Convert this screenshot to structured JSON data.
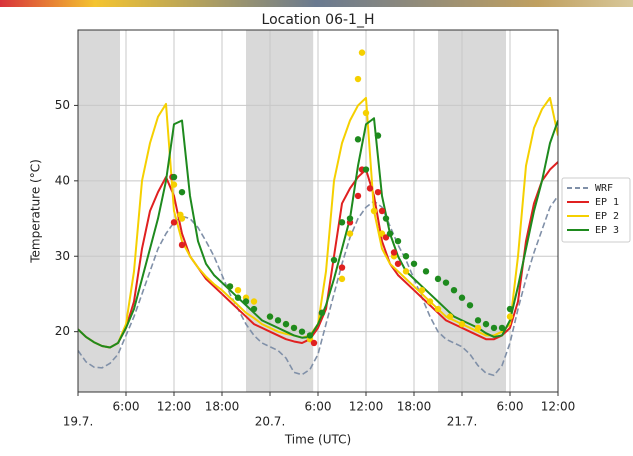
{
  "chart_data": {
    "type": "line",
    "title": "Location 06-1_H",
    "xlabel": "Time (UTC)",
    "ylabel": "Temperature (°C)",
    "xlim": [
      0,
      60
    ],
    "ylim": [
      12,
      60
    ],
    "yticks": [
      20,
      30,
      40,
      50
    ],
    "xticks": [
      {
        "value": 0,
        "label": "19.7."
      },
      {
        "value": 6,
        "label": "6:00"
      },
      {
        "value": 12,
        "label": "12:00"
      },
      {
        "value": 18,
        "label": "18:00"
      },
      {
        "value": 24,
        "label": "20.7."
      },
      {
        "value": 30,
        "label": "6:00"
      },
      {
        "value": 36,
        "label": "12:00"
      },
      {
        "value": 42,
        "label": "18:00"
      },
      {
        "value": 48,
        "label": "21.7."
      },
      {
        "value": 54,
        "label": "6:00"
      },
      {
        "value": 60,
        "label": "12:00"
      }
    ],
    "grid": true,
    "legend": "right",
    "night_spans": [
      [
        0,
        5.25
      ],
      [
        21,
        29.4
      ],
      [
        45,
        53.5
      ]
    ],
    "x": [
      0,
      1,
      2,
      3,
      4,
      5,
      6,
      7,
      8,
      9,
      10,
      11,
      12,
      13,
      14,
      15,
      16,
      17,
      18,
      19,
      20,
      21,
      22,
      23,
      24,
      25,
      26,
      27,
      28,
      29,
      30,
      31,
      32,
      33,
      34,
      35,
      36,
      37,
      38,
      39,
      40,
      41,
      42,
      43,
      44,
      45,
      46,
      47,
      48,
      49,
      50,
      51,
      52,
      53,
      54,
      55,
      56,
      57,
      58,
      59,
      60
    ],
    "series": [
      {
        "name": "WRF",
        "color": "#8090a8",
        "dashed": true,
        "values": [
          17.5,
          16,
          15.3,
          15.2,
          15.8,
          17,
          19.5,
          22,
          25,
          28,
          31,
          33,
          34.5,
          35.3,
          35,
          33.8,
          32,
          30,
          27.5,
          25,
          23,
          21,
          19.5,
          18.5,
          18,
          17.5,
          16.5,
          14.6,
          14.3,
          15,
          17,
          21,
          25,
          29,
          32.5,
          35,
          36.5,
          37.3,
          36.5,
          34,
          31.5,
          29.5,
          27,
          24.5,
          22,
          20,
          19,
          18.5,
          18,
          17,
          15.5,
          14.5,
          14.2,
          15.5,
          18.5,
          23,
          27,
          30.5,
          33.5,
          36.5,
          38
        ]
      },
      {
        "name": "EP 1",
        "color": "#e02020",
        "values": [
          20.3,
          19.3,
          18.6,
          18.1,
          17.9,
          18.5,
          20.5,
          24,
          31,
          36,
          38.5,
          40.5,
          38,
          33,
          30,
          28.5,
          27,
          26,
          25,
          24,
          23,
          22,
          21,
          20.5,
          20,
          19.5,
          19,
          18.7,
          18.5,
          19,
          20.5,
          23,
          30,
          37,
          39,
          40.5,
          41.5,
          38,
          32,
          29,
          27.5,
          26.5,
          25.5,
          24.5,
          23.5,
          22.5,
          21.5,
          21,
          20.5,
          20,
          19.5,
          19,
          19,
          19.5,
          20.5,
          24,
          32,
          37,
          40,
          41.5,
          42.5
        ]
      },
      {
        "name": "EP 2",
        "color": "#f5d000",
        "values": [
          20.3,
          19.3,
          18.6,
          18.1,
          17.9,
          18.5,
          21,
          28,
          40,
          45,
          48.5,
          50.2,
          36,
          32,
          30,
          28.5,
          27.3,
          26.3,
          25.5,
          24.5,
          23.5,
          22.5,
          21.8,
          21,
          20.5,
          20,
          19.7,
          19.5,
          19.2,
          19.5,
          21,
          28,
          40,
          45,
          48,
          50,
          51,
          36,
          31,
          29,
          28,
          27,
          26,
          25,
          24,
          23,
          22,
          21.5,
          21,
          20.5,
          20,
          19.5,
          19.5,
          20,
          21,
          30,
          42,
          47,
          49.5,
          51,
          46
        ]
      },
      {
        "name": "EP 3",
        "color": "#1e8a1e",
        "values": [
          20.3,
          19.3,
          18.6,
          18.1,
          17.9,
          18.5,
          20.5,
          23,
          27,
          31,
          35,
          40,
          47.5,
          48,
          38,
          32,
          29,
          27.5,
          26.5,
          25.5,
          24.5,
          23.5,
          22.5,
          21.5,
          21,
          20.5,
          20,
          19.5,
          19.2,
          19.3,
          21,
          23.5,
          27,
          31,
          35,
          42,
          47.5,
          48.3,
          38,
          33,
          30,
          28,
          27,
          26,
          25,
          24,
          23,
          22,
          21.5,
          21,
          20.5,
          19.8,
          19.3,
          19.5,
          21.5,
          26,
          31,
          36,
          40,
          45,
          48
        ]
      }
    ],
    "scatter": [
      {
        "color": "#f5d000",
        "x": [
          12,
          12.8,
          13,
          19,
          20,
          21,
          22,
          24,
          26,
          27,
          29,
          33,
          34,
          35,
          35.5,
          36,
          37,
          38,
          39.5,
          41,
          43,
          44,
          45,
          46.5,
          48,
          50,
          54
        ],
        "y": [
          39.5,
          35.5,
          35,
          26,
          25.5,
          24.5,
          24,
          22,
          21,
          20.5,
          19,
          27,
          33,
          53.5,
          57,
          49,
          36,
          33,
          30,
          28,
          25.5,
          24,
          23,
          22,
          21,
          20.5,
          22
        ]
      },
      {
        "color": "#e02020",
        "x": [
          11.8,
          12,
          13,
          29.5,
          30.5,
          33,
          34,
          35,
          35.5,
          36.5,
          37.5,
          38,
          38.5,
          39.5,
          40
        ],
        "y": [
          40.5,
          34.5,
          31.5,
          18.5,
          22.5,
          28.5,
          34.5,
          38,
          41.5,
          39,
          38.5,
          36,
          32.5,
          30.5,
          29
        ]
      },
      {
        "color": "#1e8a1e",
        "x": [
          12,
          13,
          19,
          20,
          21,
          22,
          24,
          25,
          26,
          27,
          28,
          29,
          30.5,
          32,
          33,
          34,
          35,
          36,
          37.5,
          38.5,
          39,
          40,
          41,
          42,
          43.5,
          45,
          46,
          47,
          48,
          49,
          50,
          51,
          52,
          53,
          54
        ],
        "y": [
          40.5,
          38.5,
          26,
          24.5,
          24,
          23,
          22,
          21.5,
          21,
          20.5,
          20,
          19.5,
          22.5,
          29.5,
          34.5,
          35,
          45.5,
          41.5,
          46,
          35,
          33,
          32,
          30,
          29,
          28,
          27,
          26.5,
          25.5,
          24.5,
          23.5,
          21.5,
          21,
          20.5,
          20.5,
          23
        ]
      }
    ]
  }
}
